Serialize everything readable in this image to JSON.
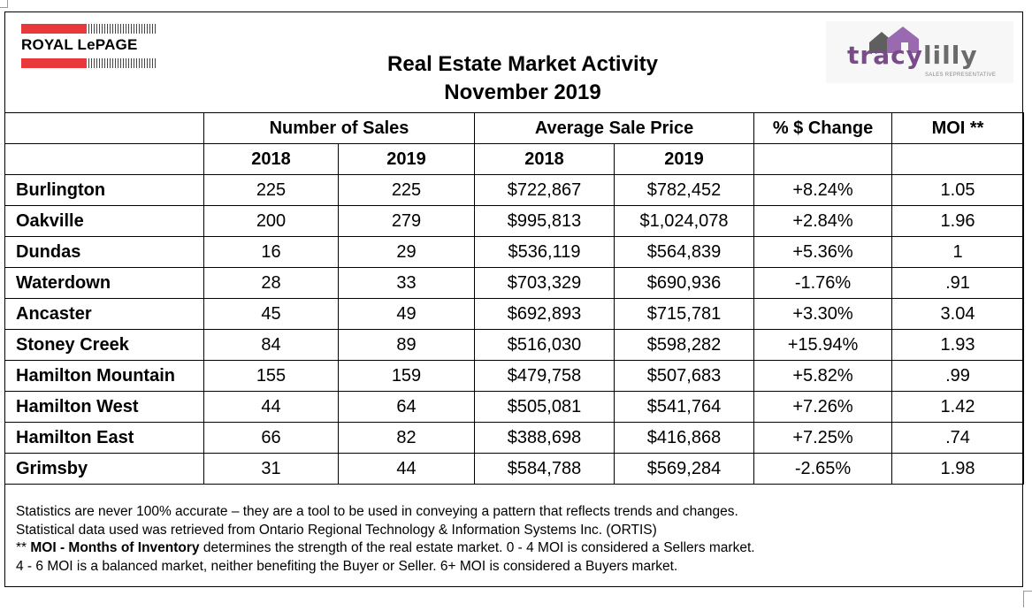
{
  "header": {
    "title_line1": "Real Estate Market Activity",
    "title_line2": "November 2019",
    "brand_left": "ROYAL LePAGE",
    "brand_right_part1": "tracy",
    "brand_right_part2": "lilly",
    "brand_right_sub": "SALES REPRESENTATIVE",
    "brand_colors": {
      "royal_lepage_red": "#e8383b",
      "tracy_purple": "#7a4a8a",
      "lilly_gray": "#6b6b6b"
    }
  },
  "table": {
    "group_headers": {
      "sales": "Number of Sales",
      "price": "Average Sale Price",
      "change": "% $ Change",
      "moi": "MOI **"
    },
    "year_headers": {
      "sales_2018": "2018",
      "sales_2019": "2019",
      "price_2018": "2018",
      "price_2019": "2019"
    },
    "rows": [
      {
        "city": "Burlington",
        "sales_2018": "225",
        "sales_2019": "225",
        "price_2018": "$722,867",
        "price_2019": "$782,452",
        "change": "+8.24%",
        "moi": "1.05"
      },
      {
        "city": "Oakville",
        "sales_2018": "200",
        "sales_2019": "279",
        "price_2018": "$995,813",
        "price_2019": "$1,024,078",
        "change": "+2.84%",
        "moi": "1.96"
      },
      {
        "city": "Dundas",
        "sales_2018": "16",
        "sales_2019": "29",
        "price_2018": "$536,119",
        "price_2019": "$564,839",
        "change": "+5.36%",
        "moi": "1"
      },
      {
        "city": "Waterdown",
        "sales_2018": "28",
        "sales_2019": "33",
        "price_2018": "$703,329",
        "price_2019": "$690,936",
        "change": "-1.76%",
        "moi": ".91"
      },
      {
        "city": "Ancaster",
        "sales_2018": "45",
        "sales_2019": "49",
        "price_2018": "$692,893",
        "price_2019": "$715,781",
        "change": "+3.30%",
        "moi": "3.04"
      },
      {
        "city": "Stoney Creek",
        "sales_2018": "84",
        "sales_2019": "89",
        "price_2018": "$516,030",
        "price_2019": "$598,282",
        "change": "+15.94%",
        "moi": "1.93"
      },
      {
        "city": "Hamilton Mountain",
        "sales_2018": "155",
        "sales_2019": "159",
        "price_2018": "$479,758",
        "price_2019": "$507,683",
        "change": "+5.82%",
        "moi": ".99"
      },
      {
        "city": "Hamilton West",
        "sales_2018": "44",
        "sales_2019": "64",
        "price_2018": "$505,081",
        "price_2019": "$541,764",
        "change": "+7.26%",
        "moi": "1.42"
      },
      {
        "city": "Hamilton East",
        "sales_2018": "66",
        "sales_2019": "82",
        "price_2018": "$388,698",
        "price_2019": "$416,868",
        "change": "+7.25%",
        "moi": ".74"
      },
      {
        "city": "Grimsby",
        "sales_2018": "31",
        "sales_2019": "44",
        "price_2018": "$584,788",
        "price_2019": "$569,284",
        "change": "-2.65%",
        "moi": "1.98"
      }
    ]
  },
  "notes": {
    "line1": "Statistics are never 100% accurate – they are a tool to be used in conveying a pattern that reflects trends and changes.",
    "line2": "Statistical data used was retrieved from Ontario Regional Technology & Information Systems Inc. (ORTIS)",
    "line3_prefix": "** ",
    "line3_bold": "MOI - Months of Inventory",
    "line3_rest": " determines the strength of the real estate market. 0 - 4 MOI is considered a Sellers market.",
    "line4": "4 - 6 MOI is a balanced market, neither benefiting the Buyer or Seller. 6+ MOI is considered a Buyers market."
  }
}
